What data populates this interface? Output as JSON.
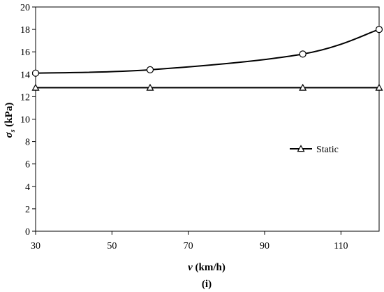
{
  "chart_data": {
    "type": "line",
    "panel_label": "(i)",
    "xlabel": {
      "var": "v",
      "unit": " (km/h)"
    },
    "ylabel": {
      "var": "σ",
      "sub": "s",
      "unit": " (kPa)"
    },
    "xlim": [
      30,
      120
    ],
    "ylim": [
      0,
      20
    ],
    "xticks": [
      30,
      50,
      70,
      90,
      110
    ],
    "yticks": [
      0,
      2,
      4,
      6,
      8,
      10,
      12,
      14,
      16,
      18,
      20
    ],
    "grid": false,
    "legend_position": "right",
    "series": [
      {
        "name": "",
        "marker": "circle",
        "smooth": true,
        "x": [
          30,
          60,
          100,
          120
        ],
        "y": [
          14.1,
          14.4,
          15.8,
          18.0
        ]
      },
      {
        "name": "Static",
        "marker": "triangle",
        "smooth": false,
        "x": [
          30,
          60,
          100,
          120
        ],
        "y": [
          12.8,
          12.8,
          12.8,
          12.8
        ]
      }
    ]
  }
}
